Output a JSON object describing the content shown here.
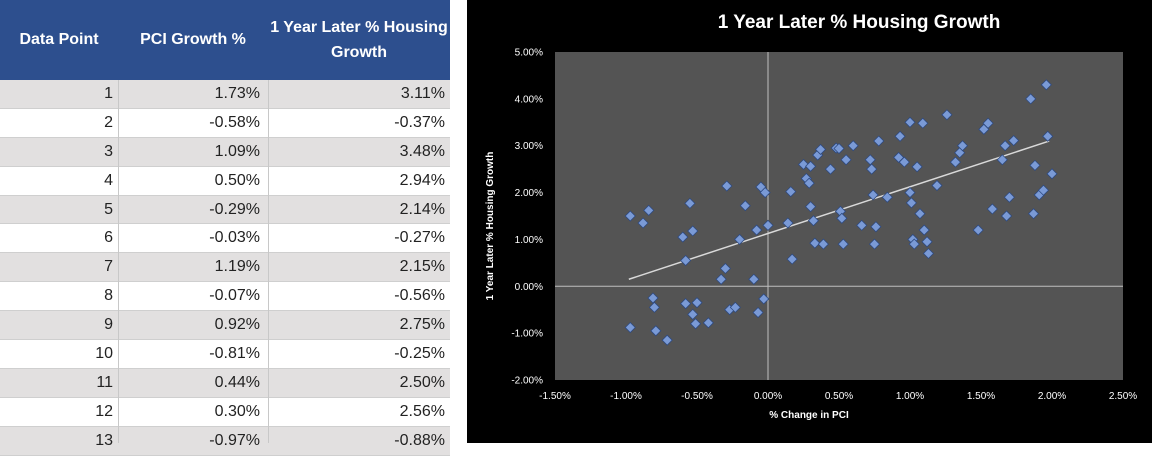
{
  "table": {
    "headers": [
      "Data Point",
      "PCI Growth %",
      "1 Year Later % Housing Growth"
    ],
    "header_bg": "#2d4f8e",
    "rows": [
      [
        "1",
        "1.73%",
        "3.11%"
      ],
      [
        "2",
        "-0.58%",
        "-0.37%"
      ],
      [
        "3",
        "1.09%",
        "3.48%"
      ],
      [
        "4",
        "0.50%",
        "2.94%"
      ],
      [
        "5",
        "-0.29%",
        "2.14%"
      ],
      [
        "6",
        "-0.03%",
        "-0.27%"
      ],
      [
        "7",
        "1.19%",
        "2.15%"
      ],
      [
        "8",
        "-0.07%",
        "-0.56%"
      ],
      [
        "9",
        "0.92%",
        "2.75%"
      ],
      [
        "10",
        "-0.81%",
        "-0.25%"
      ],
      [
        "11",
        "0.44%",
        "2.50%"
      ],
      [
        "12",
        "0.30%",
        "2.56%"
      ],
      [
        "13",
        "-0.97%",
        "-0.88%"
      ]
    ]
  },
  "chart_data": {
    "type": "scatter",
    "title": "1 Year Later % Housing Growth",
    "xlabel": "% Change in PCI",
    "ylabel": "1 Year Later % Housing Growth",
    "xlim": [
      -1.5,
      2.5
    ],
    "ylim": [
      -2.0,
      5.0
    ],
    "x_ticks": [
      "-1.50%",
      "-1.00%",
      "-0.50%",
      "0.00%",
      "0.50%",
      "1.00%",
      "1.50%",
      "2.00%",
      "2.50%"
    ],
    "y_ticks": [
      "-2.00%",
      "-1.00%",
      "0.00%",
      "1.00%",
      "2.00%",
      "3.00%",
      "4.00%",
      "5.00%"
    ],
    "grid": false,
    "plot_bg": "#545454",
    "marker_color": "#7a9ad6",
    "trendline": {
      "x": [
        -0.98,
        1.98
      ],
      "y": [
        0.15,
        3.1
      ],
      "color": "#d9d9d9"
    },
    "points": [
      [
        -0.97,
        1.5
      ],
      [
        -0.88,
        1.35
      ],
      [
        -0.84,
        1.62
      ],
      [
        -0.97,
        -0.88
      ],
      [
        -0.81,
        -0.25
      ],
      [
        -0.8,
        -0.45
      ],
      [
        -0.79,
        -0.95
      ],
      [
        -0.71,
        -1.15
      ],
      [
        -0.6,
        1.05
      ],
      [
        -0.58,
        0.55
      ],
      [
        -0.55,
        1.77
      ],
      [
        -0.53,
        1.18
      ],
      [
        -0.58,
        -0.37
      ],
      [
        -0.53,
        -0.6
      ],
      [
        -0.51,
        -0.8
      ],
      [
        -0.5,
        -0.35
      ],
      [
        -0.42,
        -0.78
      ],
      [
        -0.33,
        0.15
      ],
      [
        -0.3,
        0.38
      ],
      [
        -0.29,
        2.14
      ],
      [
        -0.27,
        -0.5
      ],
      [
        -0.23,
        -0.45
      ],
      [
        -0.2,
        1.0
      ],
      [
        -0.16,
        1.72
      ],
      [
        -0.1,
        0.15
      ],
      [
        -0.07,
        -0.56
      ],
      [
        -0.05,
        2.12
      ],
      [
        -0.03,
        -0.27
      ],
      [
        -0.02,
        2.0
      ],
      [
        0.0,
        1.3
      ],
      [
        -0.08,
        1.2
      ],
      [
        0.14,
        1.35
      ],
      [
        0.17,
        0.58
      ],
      [
        0.16,
        2.02
      ],
      [
        0.25,
        2.6
      ],
      [
        0.27,
        2.3
      ],
      [
        0.29,
        2.2
      ],
      [
        0.3,
        2.56
      ],
      [
        0.3,
        1.7
      ],
      [
        0.32,
        1.4
      ],
      [
        0.33,
        0.92
      ],
      [
        0.35,
        2.8
      ],
      [
        0.37,
        2.92
      ],
      [
        0.39,
        0.9
      ],
      [
        0.44,
        2.5
      ],
      [
        0.48,
        2.95
      ],
      [
        0.5,
        2.94
      ],
      [
        0.51,
        1.6
      ],
      [
        0.52,
        1.45
      ],
      [
        0.53,
        0.9
      ],
      [
        0.55,
        2.7
      ],
      [
        0.6,
        3.0
      ],
      [
        0.66,
        1.3
      ],
      [
        0.72,
        2.7
      ],
      [
        0.73,
        2.5
      ],
      [
        0.74,
        1.95
      ],
      [
        0.75,
        0.9
      ],
      [
        0.76,
        1.27
      ],
      [
        0.78,
        3.1
      ],
      [
        0.84,
        1.9
      ],
      [
        0.92,
        2.75
      ],
      [
        0.93,
        3.2
      ],
      [
        0.96,
        2.65
      ],
      [
        1.0,
        3.5
      ],
      [
        1.0,
        2.0
      ],
      [
        1.01,
        1.78
      ],
      [
        1.02,
        1.0
      ],
      [
        1.03,
        0.9
      ],
      [
        1.05,
        2.55
      ],
      [
        1.07,
        1.55
      ],
      [
        1.09,
        3.48
      ],
      [
        1.1,
        1.2
      ],
      [
        1.12,
        0.95
      ],
      [
        1.13,
        0.7
      ],
      [
        1.19,
        2.15
      ],
      [
        1.26,
        3.66
      ],
      [
        1.32,
        2.65
      ],
      [
        1.35,
        2.85
      ],
      [
        1.37,
        3.0
      ],
      [
        1.48,
        1.2
      ],
      [
        1.52,
        3.35
      ],
      [
        1.55,
        3.48
      ],
      [
        1.58,
        1.65
      ],
      [
        1.65,
        2.7
      ],
      [
        1.67,
        3.0
      ],
      [
        1.68,
        1.5
      ],
      [
        1.7,
        1.9
      ],
      [
        1.73,
        3.11
      ],
      [
        1.85,
        4.0
      ],
      [
        1.87,
        1.55
      ],
      [
        1.88,
        2.58
      ],
      [
        1.91,
        1.95
      ],
      [
        1.94,
        2.05
      ],
      [
        1.96,
        4.3
      ],
      [
        1.97,
        3.2
      ],
      [
        2.0,
        2.4
      ]
    ]
  }
}
